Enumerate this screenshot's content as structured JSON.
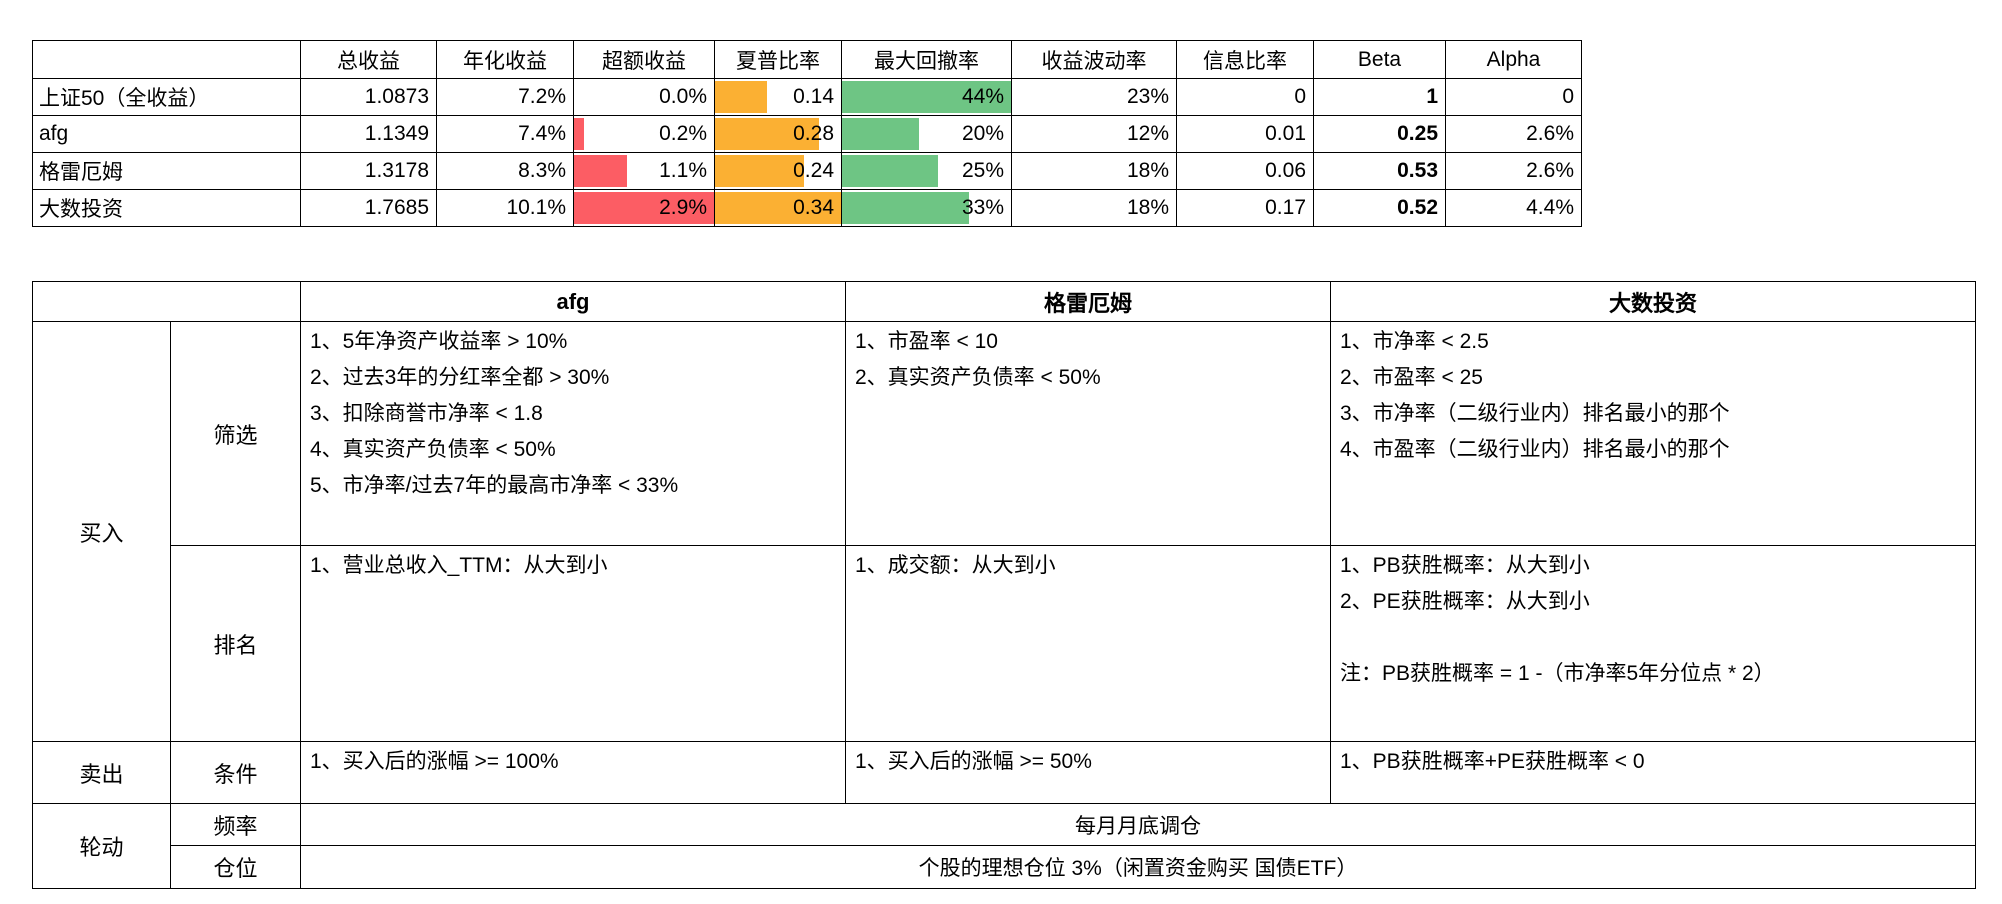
{
  "performance_table": {
    "columns": [
      "",
      "总收益",
      "年化收益",
      "超额收益",
      "夏普比率",
      "最大回撤率",
      "收益波动率",
      "信息比率",
      "Beta",
      "Alpha"
    ],
    "bar_colors": {
      "excess_return": "#fc5d64",
      "sharpe": "#fbb033",
      "max_drawdown": "#6ec584"
    },
    "rows": [
      {
        "name": "上证50（全收益）",
        "total_return": "1.0873",
        "annualized_return": "7.2%",
        "excess_return": "0.0%",
        "excess_bar_pct": 0,
        "sharpe": "0.14",
        "sharpe_bar_pct": 41.2,
        "max_drawdown": "44%",
        "drawdown_bar_pct": 100,
        "volatility": "23%",
        "info_ratio": "0",
        "beta": "1",
        "alpha": "0"
      },
      {
        "name": "afg",
        "total_return": "1.1349",
        "annualized_return": "7.4%",
        "excess_return": "0.2%",
        "excess_bar_pct": 6.9,
        "sharpe": "0.28",
        "sharpe_bar_pct": 82.4,
        "max_drawdown": "20%",
        "drawdown_bar_pct": 45.5,
        "volatility": "12%",
        "info_ratio": "0.01",
        "beta": "0.25",
        "alpha": "2.6%"
      },
      {
        "name": "格雷厄姆",
        "total_return": "1.3178",
        "annualized_return": "8.3%",
        "excess_return": "1.1%",
        "excess_bar_pct": 37.9,
        "sharpe": "0.24",
        "sharpe_bar_pct": 70.6,
        "max_drawdown": "25%",
        "drawdown_bar_pct": 56.8,
        "volatility": "18%",
        "info_ratio": "0.06",
        "beta": "0.53",
        "alpha": "2.6%"
      },
      {
        "name": "大数投资",
        "total_return": "1.7685",
        "annualized_return": "10.1%",
        "excess_return": "2.9%",
        "excess_bar_pct": 100,
        "sharpe": "0.34",
        "sharpe_bar_pct": 100,
        "max_drawdown": "33%",
        "drawdown_bar_pct": 75,
        "volatility": "18%",
        "info_ratio": "0.17",
        "beta": "0.52",
        "alpha": "4.4%"
      }
    ]
  },
  "strategy_table": {
    "columns": [
      "afg",
      "格雷厄姆",
      "大数投资"
    ],
    "groups": [
      {
        "label": "买入",
        "rows": [
          {
            "label": "筛选",
            "cells": [
              {
                "lines": [
                  "1、5年净资产收益率 > 10%",
                  "2、过去3年的分红率全都 > 30%",
                  "3、扣除商誉市净率 < 1.8",
                  "4、真实资产负债率 < 50%",
                  "5、市净率/过去7年的最高市净率 < 33%"
                ]
              },
              {
                "lines": [
                  "1、市盈率 < 10",
                  "2、真实资产负债率 < 50%"
                ]
              },
              {
                "lines": [
                  "1、市净率 < 2.5",
                  "2、市盈率 < 25",
                  "3、市净率（二级行业内）排名最小的那个",
                  "4、市盈率（二级行业内）排名最小的那个"
                ]
              }
            ]
          },
          {
            "label": "排名",
            "cells": [
              {
                "lines": [
                  "1、营业总收入_TTM：从大到小"
                ]
              },
              {
                "lines": [
                  "1、成交额：从大到小"
                ]
              },
              {
                "lines": [
                  "1、PB获胜概率：从大到小",
                  "2、PE获胜概率：从大到小",
                  "",
                  "注：PB获胜概率 = 1 -（市净率5年分位点 * 2）"
                ]
              }
            ]
          }
        ]
      },
      {
        "label": "卖出",
        "rows": [
          {
            "label": "条件",
            "cells": [
              {
                "lines": [
                  "1、买入后的涨幅 >= 100%"
                ]
              },
              {
                "lines": [
                  "1、买入后的涨幅 >= 50%"
                ]
              },
              {
                "lines": [
                  "1、PB获胜概率+PE获胜概率 < 0"
                ]
              }
            ]
          }
        ]
      },
      {
        "label": "轮动",
        "rows": [
          {
            "label": "频率",
            "merged": "每月月底调仓"
          },
          {
            "label": "仓位",
            "merged": "个股的理想仓位 3%（闲置资金购买 国债ETF）"
          }
        ]
      }
    ]
  }
}
